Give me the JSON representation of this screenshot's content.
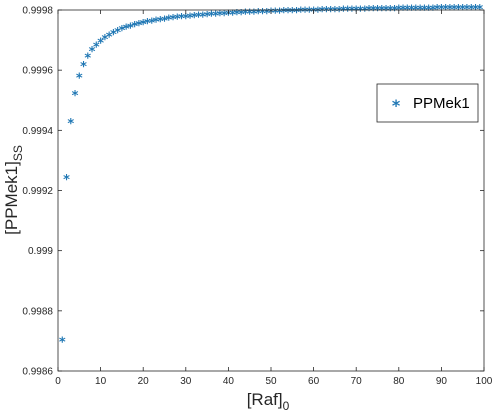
{
  "chart_data": {
    "type": "scatter",
    "title": "",
    "xlabel": "[Raf]",
    "xlabel_subscript": "0",
    "ylabel": "[PPMek1]",
    "ylabel_subscript": "SS",
    "xlim": [
      0,
      100
    ],
    "ylim": [
      0.9986,
      0.9998
    ],
    "x_ticks": [
      0,
      10,
      20,
      30,
      40,
      50,
      60,
      70,
      80,
      90,
      100
    ],
    "x_tick_labels": [
      "0",
      "10",
      "20",
      "30",
      "40",
      "50",
      "60",
      "70",
      "80",
      "90",
      "100"
    ],
    "y_ticks": [
      0.9986,
      0.9988,
      0.999,
      0.9992,
      0.9994,
      0.9996,
      0.9998
    ],
    "y_tick_labels": [
      "0.9986",
      "0.9988",
      "0.999",
      "0.9992",
      "0.9994",
      "0.9996",
      "0.9998"
    ],
    "grid": false,
    "legend_position": "right",
    "marker": "*",
    "series": [
      {
        "name": "PPMek1",
        "color": "#1f77b4",
        "model": {
          "x_start": 1,
          "x_end": 99,
          "x_step": 1,
          "asymptote": 0.99982,
          "coefficient": 0.00112,
          "exponent": 0.95
        }
      }
    ]
  }
}
